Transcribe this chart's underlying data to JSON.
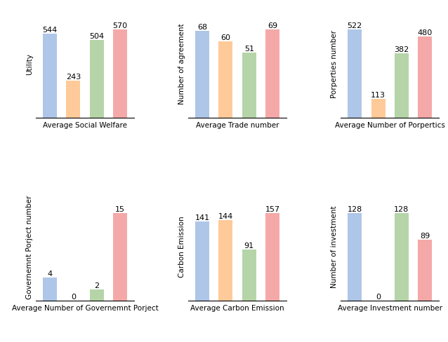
{
  "subplots": [
    {
      "title": "Average Social Welfare",
      "ylabel": "Utility",
      "values": [
        544,
        243,
        504,
        570
      ],
      "colors": [
        "#aec6e8",
        "#ffca99",
        "#b5d5a8",
        "#f4a9a8"
      ],
      "labels": [
        544,
        243,
        504,
        570
      ]
    },
    {
      "title": "Average Trade number",
      "ylabel": "Number of agreement",
      "values": [
        68,
        60,
        51,
        69
      ],
      "colors": [
        "#aec6e8",
        "#ffca99",
        "#b5d5a8",
        "#f4a9a8"
      ],
      "labels": [
        68,
        60,
        51,
        69
      ]
    },
    {
      "title": "Average Number of Porpertics",
      "ylabel": "Porperties number",
      "values": [
        522,
        113,
        382,
        480
      ],
      "colors": [
        "#aec6e8",
        "#ffca99",
        "#b5d5a8",
        "#f4a9a8"
      ],
      "labels": [
        522,
        113,
        382,
        480
      ]
    },
    {
      "title": "Average Number of Governemnt Porject",
      "ylabel": "Governemnt Porject number",
      "values": [
        4,
        0,
        2,
        15
      ],
      "colors": [
        "#aec6e8",
        "#ffca99",
        "#b5d5a8",
        "#f4a9a8"
      ],
      "labels": [
        4,
        0,
        2,
        15
      ]
    },
    {
      "title": "Average Carbon Emission",
      "ylabel": "Carbon Emission",
      "values": [
        141,
        144,
        91,
        157
      ],
      "colors": [
        "#aec6e8",
        "#ffca99",
        "#b5d5a8",
        "#f4a9a8"
      ],
      "labels": [
        141,
        144,
        91,
        157
      ]
    },
    {
      "title": "Average Investment number",
      "ylabel": "Number of investment",
      "values": [
        128,
        0,
        128,
        89
      ],
      "colors": [
        "#aec6e8",
        "#ffca99",
        "#b5d5a8",
        "#f4a9a8"
      ],
      "labels": [
        128,
        0,
        128,
        89
      ]
    }
  ],
  "bar_width": 0.6,
  "label_fontsize": 8.0,
  "title_fontsize": 7.5,
  "ylabel_fontsize": 7.5
}
